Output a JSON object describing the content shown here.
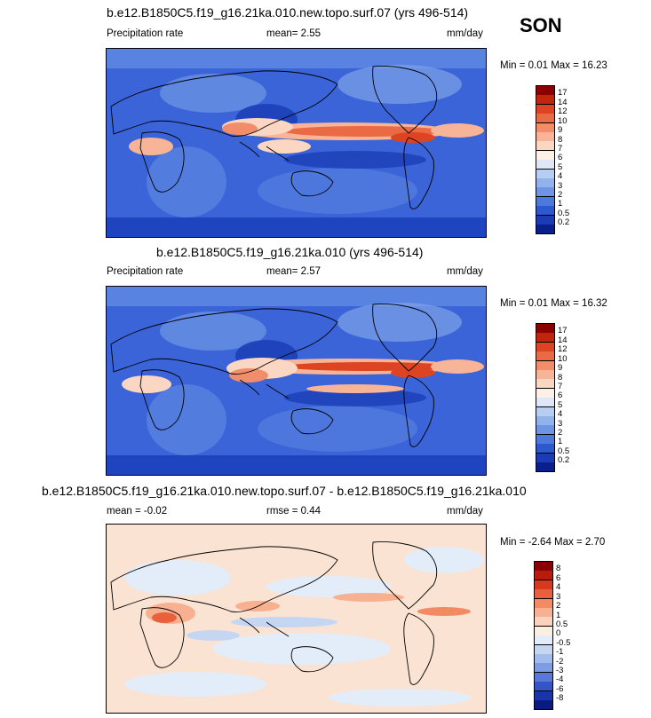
{
  "season": "SON",
  "panels": [
    {
      "title": "b.e12.B1850C5.f19_g16.21ka.010.new.topo.surf.07 (yrs 496-514)",
      "left_label": "Precipitation rate",
      "mid_label": "mean=   2.55",
      "units": "mm/day",
      "minmax": "Min =   0.01 Max =  16.23",
      "colorbar_labels": [
        "17",
        "14",
        "12",
        "10",
        "9",
        "8",
        "7",
        "6",
        "5",
        "4",
        "3",
        "2",
        "1",
        "0.5",
        "0.2"
      ],
      "colorbar_colors": [
        "#8b0000",
        "#c0260e",
        "#dd4422",
        "#ea6a45",
        "#f28d6b",
        "#f7b497",
        "#fbd6c2",
        "#fdf0e6",
        "#dde7f8",
        "#b8cdf2",
        "#92b2ec",
        "#6e95e4",
        "#4d79dc",
        "#2d59cf",
        "#1c3cb6",
        "#0a1f8e"
      ]
    },
    {
      "title": "b.e12.B1850C5.f19_g16.21ka.010 (yrs 496-514)",
      "left_label": "Precipitation rate",
      "mid_label": "mean=   2.57",
      "units": "mm/day",
      "minmax": "Min =   0.01 Max =  16.32",
      "colorbar_labels": [
        "17",
        "14",
        "12",
        "10",
        "9",
        "8",
        "7",
        "6",
        "5",
        "4",
        "3",
        "2",
        "1",
        "0.5",
        "0.2"
      ],
      "colorbar_colors": [
        "#8b0000",
        "#c0260e",
        "#dd4422",
        "#ea6a45",
        "#f28d6b",
        "#f7b497",
        "#fbd6c2",
        "#fdf0e6",
        "#dde7f8",
        "#b8cdf2",
        "#92b2ec",
        "#6e95e4",
        "#4d79dc",
        "#2d59cf",
        "#1c3cb6",
        "#0a1f8e"
      ]
    },
    {
      "title": "b.e12.B1850C5.f19_g16.21ka.010.new.topo.surf.07 - b.e12.B1850C5.f19_g16.21ka.010",
      "left_label": "mean =  -0.02",
      "mid_label": "rmse =   0.44",
      "units": "mm/day",
      "minmax": "Min =  -2.64 Max =   2.70",
      "colorbar_labels": [
        "8",
        "6",
        "4",
        "3",
        "2",
        "1",
        "0.5",
        "0",
        "-0.5",
        "-1",
        "-2",
        "-3",
        "-4",
        "-6",
        "-8"
      ],
      "colorbar_colors": [
        "#8b0000",
        "#b81c0c",
        "#d63a1e",
        "#e8613c",
        "#f28a63",
        "#f7b090",
        "#fbd2bd",
        "#fdeee2",
        "#e3ecf9",
        "#c5d6f3",
        "#a2bdec",
        "#7c9de3",
        "#5879d7",
        "#3355c8",
        "#1a34ab",
        "#0a1a80"
      ]
    }
  ],
  "chart_data": [
    {
      "type": "heatmap",
      "title": "b.e12.B1850C5.f19_g16.21ka.010.new.topo.surf.07 (yrs 496-514)",
      "variable": "Precipitation rate",
      "units": "mm/day",
      "season": "SON",
      "mean": 2.55,
      "min": 0.01,
      "max": 16.23,
      "levels": [
        0.2,
        0.5,
        1,
        2,
        3,
        4,
        5,
        6,
        7,
        8,
        9,
        10,
        12,
        14,
        17
      ]
    },
    {
      "type": "heatmap",
      "title": "b.e12.B1850C5.f19_g16.21ka.010 (yrs 496-514)",
      "variable": "Precipitation rate",
      "units": "mm/day",
      "season": "SON",
      "mean": 2.57,
      "min": 0.01,
      "max": 16.32,
      "levels": [
        0.2,
        0.5,
        1,
        2,
        3,
        4,
        5,
        6,
        7,
        8,
        9,
        10,
        12,
        14,
        17
      ]
    },
    {
      "type": "heatmap",
      "title": "b.e12.B1850C5.f19_g16.21ka.010.new.topo.surf.07 - b.e12.B1850C5.f19_g16.21ka.010",
      "units": "mm/day",
      "season": "SON",
      "mean": -0.02,
      "rmse": 0.44,
      "min": -2.64,
      "max": 2.7,
      "levels": [
        -8,
        -6,
        -4,
        -3,
        -2,
        -1,
        -0.5,
        0,
        0.5,
        1,
        2,
        3,
        4,
        6,
        8
      ]
    }
  ]
}
